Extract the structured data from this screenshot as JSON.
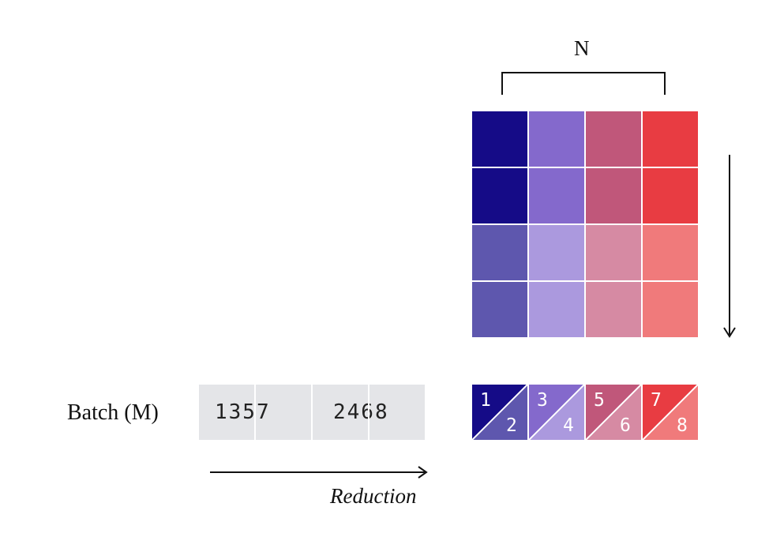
{
  "labels": {
    "n_dimension": "N",
    "batch": "Batch (M)",
    "reduction": "Reduction"
  },
  "batch_strip": {
    "group_1": "1357",
    "group_2": "2468"
  },
  "matrix": {
    "rows": 4,
    "cols": 4,
    "colors": [
      [
        "#150b87",
        "#8469cc",
        "#c0577a",
        "#e83c42"
      ],
      [
        "#150b87",
        "#8469cc",
        "#c0577a",
        "#e83c42"
      ],
      [
        "#5e57ae",
        "#ab99de",
        "#d68aa3",
        "#f07a7b"
      ],
      [
        "#5e57ae",
        "#ab99de",
        "#d68aa3",
        "#f07a7b"
      ]
    ]
  },
  "output_tiles": [
    {
      "top_label": "1",
      "bottom_label": "2",
      "top_color": "#150b87",
      "bottom_color": "#5e57ae"
    },
    {
      "top_label": "3",
      "bottom_label": "4",
      "top_color": "#8469cc",
      "bottom_color": "#ab99de"
    },
    {
      "top_label": "5",
      "bottom_label": "6",
      "top_color": "#c0577a",
      "bottom_color": "#d68aa3"
    },
    {
      "top_label": "7",
      "bottom_label": "8",
      "top_color": "#e83c42",
      "bottom_color": "#f07a7b"
    }
  ]
}
